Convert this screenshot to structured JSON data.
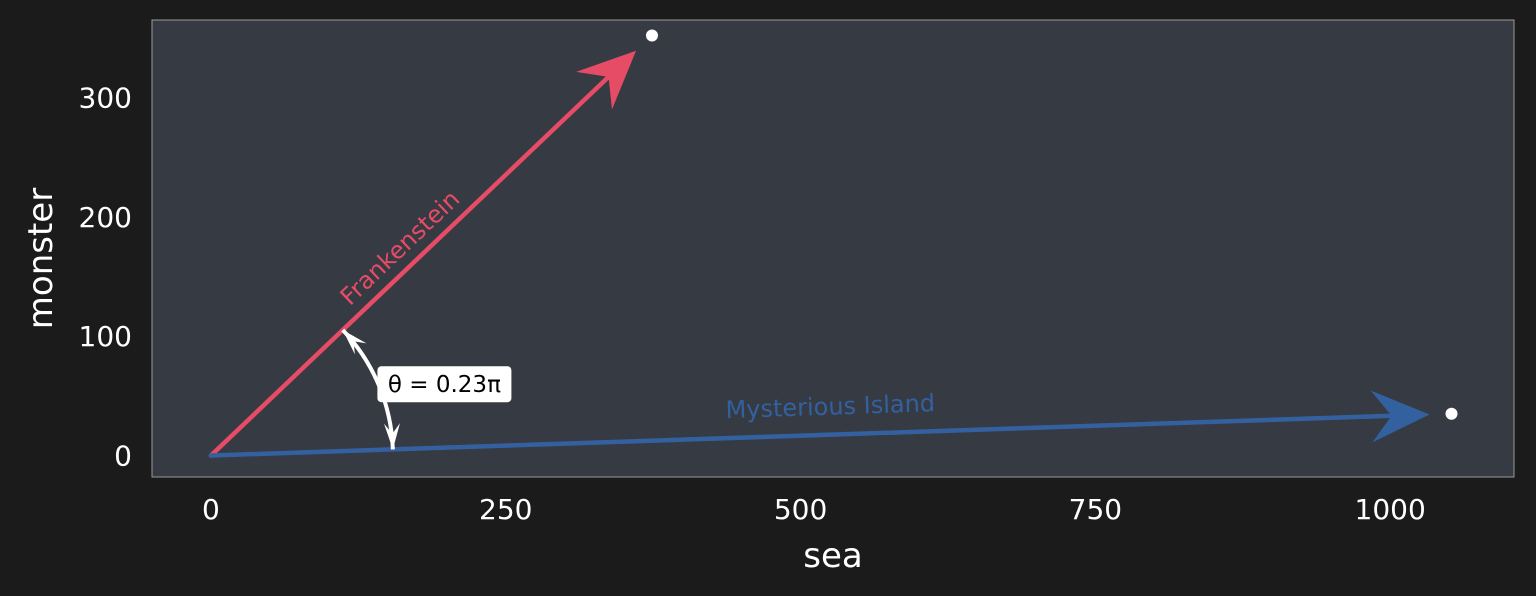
{
  "chart_data": {
    "type": "vector",
    "xlabel": "sea",
    "ylabel": "monster",
    "xlim": [
      -50,
      1105
    ],
    "ylim": [
      -18,
      365
    ],
    "xticks": [
      0,
      250,
      500,
      750,
      1000
    ],
    "yticks": [
      0,
      100,
      200,
      300
    ],
    "grid": false,
    "vectors": [
      {
        "name": "Frankenstein",
        "x": 374,
        "y": 352,
        "color": "#e64c66"
      },
      {
        "name": "Mysterious Island",
        "x": 1052,
        "y": 35,
        "color": "#3361a0"
      }
    ],
    "angle_annotation": {
      "text": "θ = 0.23π",
      "value_pi": 0.23
    }
  },
  "colors": {
    "page_background": "#1b1b1b",
    "plot_background": "#363a43",
    "frame": "#9a9a9a",
    "endpoint": "#ffffff",
    "angle_arc": "#ffffff"
  }
}
